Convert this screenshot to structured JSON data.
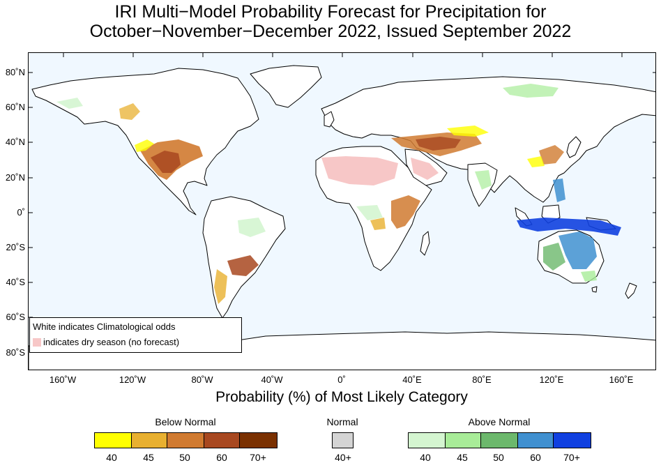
{
  "title": {
    "line1": "IRI Multi−Model Probability Forecast for Precipitation for",
    "line2": "October−November−December 2022, Issued September 2022"
  },
  "map": {
    "ocean_color": "#f0f8ff",
    "land_color": "#ffffff",
    "y_ticks": [
      "80˚N",
      "60˚N",
      "40˚N",
      "20˚N",
      "0˚",
      "20˚S",
      "40˚S",
      "60˚S",
      "80˚S"
    ],
    "x_ticks": [
      "160˚W",
      "120˚W",
      "80˚W",
      "40˚W",
      "0˚",
      "40˚E",
      "80˚E",
      "120˚E",
      "160˚E"
    ]
  },
  "legend_box": {
    "line1": "White indicates Climatological odds",
    "line2": "indicates dry season (no forecast)",
    "dry_color": "#f7c7c7"
  },
  "subtitle": "Probability (%) of Most Likely Category",
  "colorbars": {
    "below": {
      "title": "Below Normal",
      "colors": [
        "#ffff00",
        "#e8b030",
        "#d07a30",
        "#a84820",
        "#7a3000"
      ],
      "labels": [
        "40",
        "45",
        "50",
        "60",
        "70+"
      ]
    },
    "normal": {
      "title": "Normal",
      "colors": [
        "#d4d4d4"
      ],
      "labels": [
        "40+"
      ]
    },
    "above": {
      "title": "Above Normal",
      "colors": [
        "#d4f5d0",
        "#a8ec98",
        "#6cb86c",
        "#4090d0",
        "#1040e0"
      ],
      "labels": [
        "40",
        "45",
        "50",
        "60",
        "70+"
      ]
    }
  }
}
